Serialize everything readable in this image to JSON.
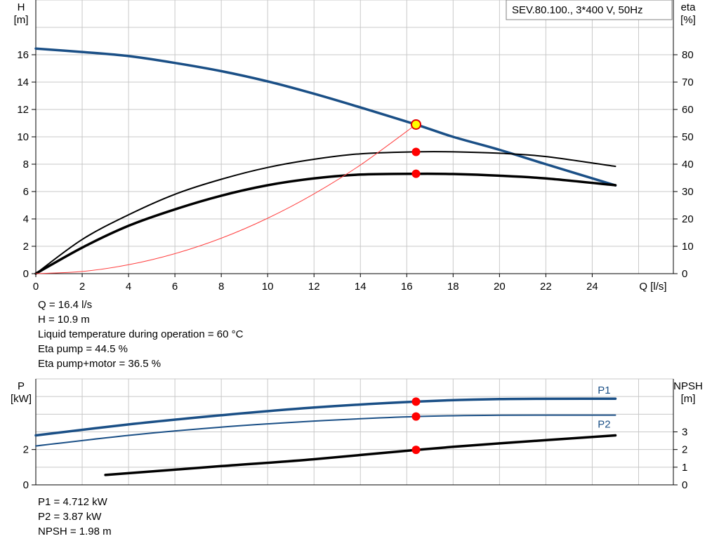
{
  "model_box": "SEV.80.100., 3*400 V, 50Hz",
  "top_info": [
    "Q = 16.4 l/s",
    "H = 10.9 m",
    "Liquid temperature during operation = 60 °C",
    "Eta pump = 44.5 %",
    "Eta pump+motor = 36.5 %"
  ],
  "bottom_info": [
    "P1 = 4.712 kW",
    "P2 = 3.87 kW",
    "NPSH = 1.98 m"
  ],
  "colors": {
    "grid": "#c8c8c8",
    "blue": "#1a4f86",
    "black": "#000000",
    "system": "#ff4040",
    "point": "#ff0000",
    "op_point_fill": "#ffff00"
  },
  "chart_data": [
    {
      "type": "line",
      "xlabel": "Q [l/s]",
      "ylabel_left": [
        "H",
        "[m]"
      ],
      "ylabel_right": [
        "eta",
        "[%]"
      ],
      "xlim": [
        0,
        27.5
      ],
      "ylim_left": [
        0,
        20
      ],
      "ylim_right": [
        0,
        100
      ],
      "x_ticks": [
        0,
        2,
        4,
        6,
        8,
        10,
        12,
        14,
        16,
        18,
        20,
        22,
        24
      ],
      "y_ticks_left": [
        0,
        2,
        4,
        6,
        8,
        10,
        12,
        14,
        16
      ],
      "y_ticks_right": [
        0,
        10,
        20,
        30,
        40,
        50,
        60,
        70,
        80
      ],
      "grid": true,
      "series": [
        {
          "id": "H",
          "axis": "left",
          "color": "#1a4f86",
          "width": 3.5,
          "x": [
            0,
            2,
            4,
            6,
            8,
            10,
            12,
            14,
            16.4,
            18,
            20,
            22,
            25
          ],
          "y": [
            16.45,
            16.2,
            15.9,
            15.4,
            14.8,
            14.05,
            13.15,
            12.15,
            10.9,
            10.0,
            9.05,
            8.0,
            6.45
          ]
        },
        {
          "id": "eta_pump",
          "axis": "right",
          "color": "#000000",
          "width": 2,
          "x": [
            0,
            2,
            4,
            6,
            8,
            10,
            12,
            14,
            16.4,
            18,
            20,
            22,
            25
          ],
          "y": [
            0,
            12.5,
            21.5,
            29.0,
            34.5,
            38.8,
            41.8,
            43.8,
            44.5,
            44.5,
            44.0,
            42.8,
            39.2
          ]
        },
        {
          "id": "eta_pump_motor",
          "axis": "right",
          "color": "#000000",
          "width": 3.5,
          "x": [
            0,
            2,
            4,
            6,
            8,
            10,
            12,
            14,
            16.4,
            18,
            20,
            22,
            25
          ],
          "y": [
            0,
            9.5,
            17.5,
            23.5,
            28.5,
            32.3,
            34.8,
            36.2,
            36.5,
            36.4,
            35.8,
            34.8,
            32.3
          ]
        },
        {
          "id": "system",
          "axis": "left",
          "color": "#ff4040",
          "width": 1,
          "x": [
            0,
            2,
            4,
            6,
            8,
            10,
            12,
            14,
            16.4
          ],
          "y": [
            0,
            0.16,
            0.65,
            1.46,
            2.59,
            4.05,
            5.83,
            7.94,
            10.9
          ]
        }
      ],
      "points": [
        {
          "x": 16.4,
          "y": 10.9,
          "axis": "left",
          "operating": true
        },
        {
          "x": 16.4,
          "y": 44.5,
          "axis": "right"
        },
        {
          "x": 16.4,
          "y": 36.5,
          "axis": "right"
        }
      ]
    },
    {
      "type": "line",
      "ylabel_left": [
        "P",
        "[kW]"
      ],
      "ylabel_right": [
        "NPSH",
        "[m]"
      ],
      "xlim": [
        0,
        27.5
      ],
      "ylim_left": [
        0,
        6
      ],
      "ylim_right": [
        0,
        6
      ],
      "y_ticks_left": [
        0,
        2
      ],
      "y_ticks_right": [
        0,
        1,
        2,
        3
      ],
      "grid": true,
      "series": [
        {
          "id": "P1",
          "name": "P1",
          "axis": "left",
          "color": "#1a4f86",
          "width": 3.5,
          "x": [
            0,
            4,
            8,
            12,
            16.4,
            20,
            25
          ],
          "y": [
            2.8,
            3.42,
            3.94,
            4.38,
            4.712,
            4.86,
            4.88
          ]
        },
        {
          "id": "P2",
          "name": "P2",
          "axis": "left",
          "color": "#1a4f86",
          "width": 2,
          "x": [
            0,
            4,
            8,
            12,
            16.4,
            20,
            25
          ],
          "y": [
            2.2,
            2.8,
            3.27,
            3.61,
            3.87,
            3.94,
            3.95
          ]
        },
        {
          "id": "NPSH",
          "axis": "right",
          "color": "#000000",
          "width": 3.5,
          "x": [
            3,
            8,
            12,
            16.4,
            20,
            25
          ],
          "y": [
            0.56,
            1.06,
            1.45,
            1.98,
            2.35,
            2.8
          ]
        }
      ],
      "points": [
        {
          "x": 16.4,
          "y": 4.712,
          "axis": "left"
        },
        {
          "x": 16.4,
          "y": 3.87,
          "axis": "left"
        },
        {
          "x": 16.4,
          "y": 1.98,
          "axis": "right"
        }
      ]
    }
  ]
}
